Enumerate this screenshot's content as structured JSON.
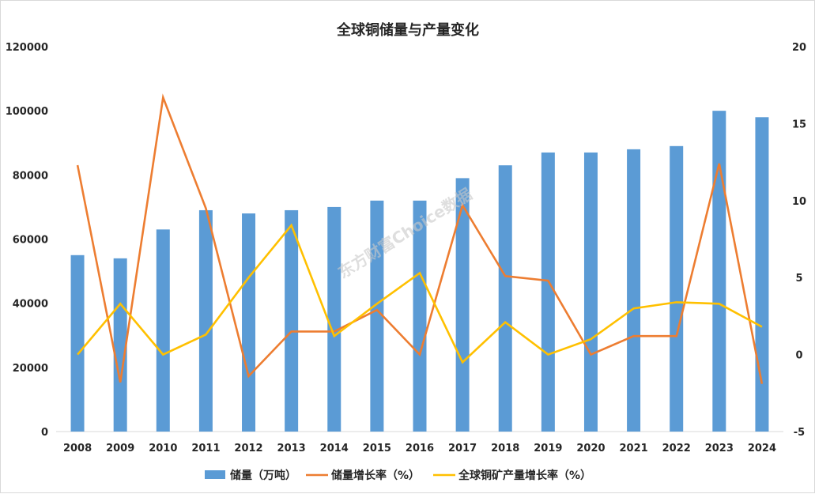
{
  "chart_data": {
    "type": "bar+line",
    "title": "全球铜储量与产量变化",
    "categories": [
      "2008",
      "2009",
      "2010",
      "2011",
      "2012",
      "2013",
      "2014",
      "2015",
      "2016",
      "2017",
      "2018",
      "2019",
      "2020",
      "2021",
      "2022",
      "2023",
      "2024"
    ],
    "left_axis": {
      "ylim": [
        0,
        120000
      ],
      "ticks": [
        "0",
        "20000",
        "40000",
        "60000",
        "80000",
        "100000",
        "120000"
      ]
    },
    "right_axis": {
      "ylim": [
        -5,
        20
      ],
      "ticks": [
        "-5",
        "0",
        "5",
        "10",
        "15",
        "20"
      ]
    },
    "series": [
      {
        "name": "储量（万吨）",
        "type": "bar",
        "axis": "left",
        "color": "#5b9bd5",
        "values": [
          55000,
          54000,
          63000,
          69000,
          68000,
          69000,
          70000,
          72000,
          72000,
          79000,
          83000,
          87000,
          87000,
          88000,
          89000,
          100000,
          98000
        ]
      },
      {
        "name": "储量增长率（%）",
        "type": "line",
        "axis": "right",
        "color": "#ed7d31",
        "values": [
          12.3,
          -1.8,
          16.7,
          9.5,
          -1.4,
          1.5,
          1.5,
          2.9,
          0.0,
          9.7,
          5.1,
          4.8,
          0.0,
          1.2,
          1.2,
          12.4,
          -1.9
        ]
      },
      {
        "name": "全球铜矿产量增长率（%）",
        "type": "line",
        "axis": "right",
        "color": "#ffc000",
        "values": [
          0.0,
          3.3,
          0.0,
          1.3,
          5.0,
          8.4,
          1.2,
          3.3,
          5.3,
          -0.5,
          2.1,
          0.0,
          1.0,
          3.0,
          3.4,
          3.3,
          1.8
        ]
      }
    ],
    "legend_position": "bottom",
    "grid": false
  },
  "watermark": "东方财富Choice数据"
}
